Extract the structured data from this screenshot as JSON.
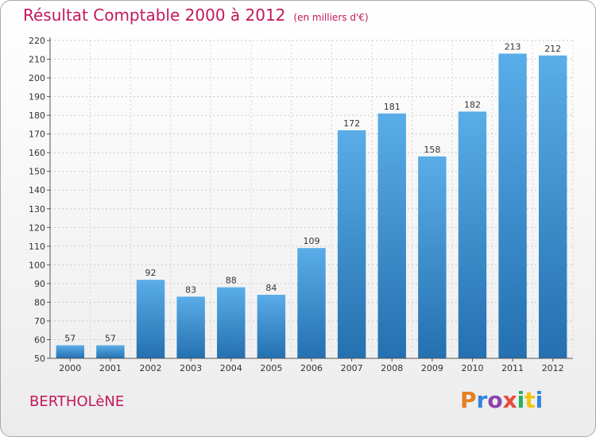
{
  "header": {
    "title": "Résultat Comptable 2000 à 2012",
    "unit": "(en milliers d'€)"
  },
  "footer": {
    "commune": "BERTHOLèNE",
    "logo": "Proxiti",
    "logo_colors": [
      "#e67e22",
      "#2e86de",
      "#8e44ad",
      "#e74c3c",
      "#27ae60",
      "#f1c40f",
      "#2e86de"
    ]
  },
  "chart_data": {
    "type": "bar",
    "title": "Résultat Comptable 2000 à 2012",
    "xlabel": "",
    "ylabel": "",
    "ylim": [
      50,
      220
    ],
    "ytick_step": 10,
    "grid": true,
    "categories": [
      "2000",
      "2001",
      "2002",
      "2003",
      "2004",
      "2005",
      "2006",
      "2007",
      "2008",
      "2009",
      "2010",
      "2011",
      "2012"
    ],
    "values": [
      57,
      57,
      92,
      83,
      88,
      84,
      109,
      172,
      181,
      158,
      182,
      213,
      212
    ],
    "bar_color_top": "#5aade8",
    "bar_color_bottom": "#2470b0"
  }
}
